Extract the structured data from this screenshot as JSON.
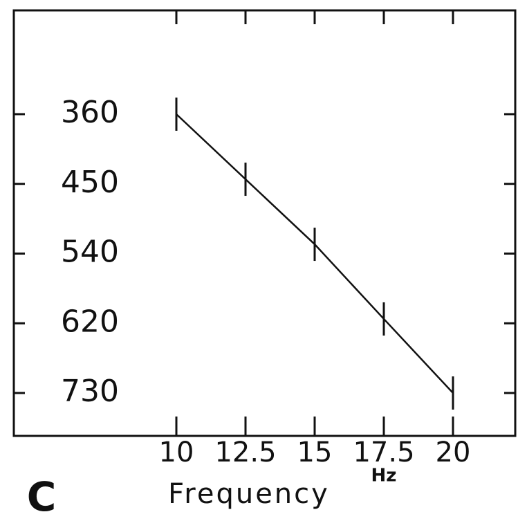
{
  "chart_data": {
    "type": "line",
    "panel_label": "C",
    "x_label": "Frequency",
    "x_unit": "Hz",
    "x": [
      10,
      12.5,
      15,
      17.5,
      20
    ],
    "series": [
      {
        "color": "#111111",
        "values": [
          360,
          444,
          528,
          615,
          730
        ]
      }
    ],
    "xlim": [
      4.125,
      22.25
    ],
    "xticks": [
      10,
      12.5,
      15,
      17.5,
      20
    ],
    "ylim": [
      360,
      730
    ],
    "yticks": [
      360,
      450,
      540,
      620,
      730
    ],
    "y_inverted": true,
    "grid": false
  }
}
